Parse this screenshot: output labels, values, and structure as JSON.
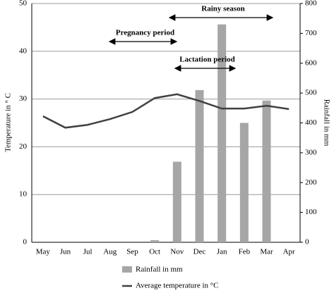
{
  "chart_data": {
    "type": "bar-line",
    "categories": [
      "May",
      "Jun",
      "Jul",
      "Aug",
      "Sep",
      "Oct",
      "Nov",
      "Dec",
      "Jan",
      "Feb",
      "Mar",
      "Apr"
    ],
    "series": [
      {
        "name": "Rainfall in mm",
        "type": "bar",
        "axis": "y2",
        "color": "#a6a6a6",
        "values": [
          0,
          0,
          0,
          0,
          0,
          7,
          270,
          510,
          730,
          400,
          475,
          0
        ]
      },
      {
        "name": "Average temperature in °C",
        "type": "line",
        "axis": "y",
        "color": "#404040",
        "values": [
          26.4,
          24.0,
          24.6,
          25.8,
          27.3,
          30.2,
          31.0,
          29.6,
          28.0,
          28.0,
          28.6,
          27.9
        ]
      }
    ],
    "y_label": "Temperature in ° C",
    "y2_label": "Rainfall in mm",
    "ylim": [
      0,
      50
    ],
    "yticks": [
      0,
      10,
      20,
      30,
      40,
      50
    ],
    "y2lim": [
      0,
      800
    ],
    "y2ticks": [
      0,
      100,
      200,
      300,
      400,
      500,
      600,
      700,
      800
    ],
    "grid": true,
    "annotations": [
      "Pregnancy period",
      "Rainy season",
      "Lactation period"
    ]
  }
}
